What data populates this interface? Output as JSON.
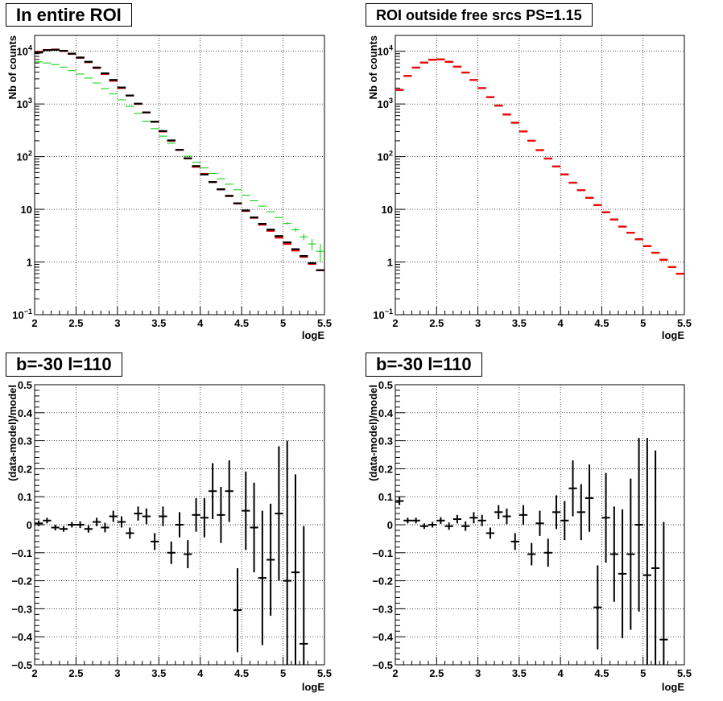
{
  "colors": {
    "data": "#000000",
    "model": "#ff0000",
    "background": "#00cc00",
    "alt_model": "#1f2ad8",
    "grid": "#000000"
  },
  "chart_data": [
    {
      "type": "scatter",
      "title": "In entire ROI",
      "xlabel": "logE",
      "ylabel": "Nb of counts",
      "xlim": [
        2,
        5.5
      ],
      "ylim": [
        0.1,
        20000
      ],
      "log_y": true,
      "grid": true,
      "xticks": [
        "2",
        "2.5",
        "3",
        "3.5",
        "4",
        "4.5",
        "5",
        "5.5"
      ],
      "yticks": [
        {
          "v": 0.1,
          "base": "10",
          "exp": "−1"
        },
        {
          "v": 1,
          "base": "1",
          "exp": ""
        },
        {
          "v": 10,
          "base": "10",
          "exp": ""
        },
        {
          "v": 100,
          "base": "10",
          "exp": "2"
        },
        {
          "v": 1000,
          "base": "10",
          "exp": "3"
        },
        {
          "v": 10000,
          "base": "10",
          "exp": "4"
        }
      ],
      "bin_width": 0.1,
      "x": [
        2.0,
        2.1,
        2.2,
        2.3,
        2.4,
        2.5,
        2.6,
        2.7,
        2.8,
        2.9,
        3.0,
        3.1,
        3.2,
        3.3,
        3.4,
        3.5,
        3.6,
        3.7,
        3.8,
        3.9,
        4.0,
        4.1,
        4.2,
        4.3,
        4.4,
        4.5,
        4.6,
        4.7,
        4.8,
        4.9,
        5.0,
        5.1,
        5.2,
        5.3,
        5.4
      ],
      "series": [
        {
          "color": "#00cc00",
          "width": 1,
          "values": [
            6300,
            6000,
            5600,
            5000,
            4300,
            3700,
            3100,
            2500,
            1950,
            1550,
            1200,
            900,
            660,
            470,
            340,
            245,
            180,
            135,
            102,
            78,
            61,
            48,
            38,
            30,
            23.5,
            18.5,
            14.5,
            11.5,
            9,
            7,
            5.4,
            4.1,
            3,
            2.2,
            1.6
          ],
          "errors": [
            0,
            0,
            0,
            0,
            0,
            0,
            0,
            0,
            0,
            0,
            0,
            0,
            0,
            0,
            0,
            0,
            0,
            0,
            0,
            0,
            0,
            0,
            0,
            0,
            0,
            0,
            0,
            0,
            0,
            0,
            0.25,
            0.32,
            0.42,
            0.52,
            0.6
          ]
        },
        {
          "color": "#000000",
          "width": 2.2,
          "values": [
            9500,
            10500,
            10700,
            10200,
            9000,
            7600,
            6300,
            4900,
            3800,
            2850,
            2050,
            1450,
            1010,
            690,
            460,
            305,
            203,
            135,
            93,
            66,
            46,
            33,
            24,
            18,
            13,
            9.5,
            7,
            5.3,
            4.1,
            3.1,
            2.35,
            1.75,
            1.3,
            0.95,
            0.7
          ],
          "errors": [
            0,
            0,
            0,
            0,
            0,
            0,
            0,
            0,
            0,
            0,
            0,
            0,
            0,
            0,
            0,
            0,
            0,
            0,
            0,
            0,
            0,
            0,
            0,
            0,
            0,
            0,
            0,
            0,
            0,
            0,
            0,
            0,
            0,
            0,
            0
          ]
        },
        {
          "color": "#ff0000",
          "width": 2.2,
          "values": [
            9700,
            10600,
            10800,
            10100,
            8900,
            7500,
            6200,
            4800,
            3700,
            2750,
            2000,
            1450,
            1000,
            690,
            460,
            300,
            200,
            135,
            93,
            64,
            47,
            33,
            24,
            17.8,
            13,
            9.3,
            6.9,
            5.1,
            3.9,
            2.9,
            2.2,
            1.65,
            1.25,
            0.92,
            0.7
          ],
          "errors": [
            0,
            0,
            0,
            0,
            0,
            0,
            0,
            0,
            0,
            0,
            0,
            0,
            0,
            0,
            0,
            0,
            0,
            0,
            0,
            0,
            0,
            0,
            0,
            0,
            0,
            0,
            0,
            0,
            0,
            0,
            0,
            0,
            0,
            0,
            0
          ]
        },
        {
          "color": "#000000",
          "width": 2.2,
          "values": [
            9500,
            10500,
            10700,
            10200,
            9000,
            7600,
            6300,
            4900,
            3800,
            2850,
            2050,
            1450,
            1010,
            690,
            460,
            305,
            203,
            135,
            93,
            66,
            46,
            33,
            24,
            18,
            13,
            9.5,
            7,
            5.3,
            4.1,
            3.1,
            2.35,
            1.75,
            1.3,
            0.95,
            0.7
          ],
          "errors": [
            0,
            0,
            0,
            0,
            0,
            0,
            0,
            0,
            0,
            0,
            0,
            0,
            0,
            0,
            0,
            0,
            0,
            0,
            0,
            0,
            0,
            0,
            0,
            0,
            0,
            0,
            0,
            0,
            0,
            0,
            0,
            0,
            0,
            0,
            0
          ]
        }
      ]
    },
    {
      "type": "scatter",
      "title": "ROI outside free srcs PS=1.15",
      "xlabel": "logE",
      "ylabel": "Nb of counts",
      "xlim": [
        2,
        5.5
      ],
      "ylim": [
        0.1,
        20000
      ],
      "log_y": true,
      "grid": true,
      "xticks": [
        "2",
        "2.5",
        "3",
        "3.5",
        "4",
        "4.5",
        "5",
        "5.5"
      ],
      "yticks": [
        {
          "v": 0.1,
          "base": "10",
          "exp": "−1"
        },
        {
          "v": 1,
          "base": "1",
          "exp": ""
        },
        {
          "v": 10,
          "base": "10",
          "exp": ""
        },
        {
          "v": 100,
          "base": "10",
          "exp": "2"
        },
        {
          "v": 1000,
          "base": "10",
          "exp": "3"
        },
        {
          "v": 10000,
          "base": "10",
          "exp": "4"
        }
      ],
      "bin_width": 0.1,
      "x": [
        2.0,
        2.1,
        2.2,
        2.3,
        2.4,
        2.5,
        2.6,
        2.7,
        2.8,
        2.9,
        3.0,
        3.1,
        3.2,
        3.3,
        3.4,
        3.5,
        3.6,
        3.7,
        3.8,
        3.9,
        4.0,
        4.1,
        4.2,
        4.3,
        4.4,
        4.5,
        4.6,
        4.7,
        4.8,
        4.9,
        5.0,
        5.1,
        5.2,
        5.3,
        5.4
      ],
      "series": [
        {
          "color": "#000000",
          "width": 2.2,
          "values": [
            1850,
            3400,
            4900,
            6100,
            6900,
            7000,
            6300,
            5100,
            3950,
            2850,
            2000,
            1350,
            930,
            630,
            440,
            300,
            200,
            133,
            92,
            65,
            46,
            32,
            23,
            16.5,
            12,
            8.8,
            6.4,
            4.7,
            3.6,
            2.7,
            2,
            1.5,
            1.1,
            0.8,
            0.6
          ],
          "errors": [
            0,
            0,
            0,
            0,
            0,
            0,
            0,
            0,
            0,
            0,
            0,
            0,
            0,
            0,
            0,
            0,
            0,
            0,
            0,
            0,
            0,
            0,
            0,
            0,
            0,
            0,
            0,
            0,
            0,
            0,
            0,
            0,
            0,
            0,
            0
          ]
        },
        {
          "color": "#ff0000",
          "width": 2.2,
          "values": [
            1850,
            3400,
            4900,
            6100,
            6900,
            7000,
            6300,
            5100,
            3950,
            2850,
            2000,
            1350,
            930,
            630,
            440,
            300,
            200,
            133,
            92,
            65,
            46,
            32,
            23,
            16.5,
            12,
            8.8,
            6.4,
            4.7,
            3.6,
            2.7,
            2,
            1.5,
            1.1,
            0.8,
            0.6
          ],
          "errors": [
            0,
            0,
            0,
            0,
            0,
            0,
            0,
            0,
            0,
            0,
            0,
            0,
            0,
            0,
            0,
            0,
            0,
            0,
            0,
            0,
            0,
            0,
            0,
            0,
            0,
            0,
            0,
            0,
            0,
            0,
            0,
            0,
            0,
            0,
            0
          ]
        }
      ]
    },
    {
      "type": "scatter",
      "title": "b=-30 l=110",
      "xlabel": "logE",
      "ylabel": "(data-model)/model",
      "xlim": [
        2,
        5.5
      ],
      "ylim": [
        -0.5,
        0.5
      ],
      "log_y": false,
      "grid": true,
      "xticks": [
        "2",
        "2.5",
        "3",
        "3.5",
        "4",
        "4.5",
        "5",
        "5.5"
      ],
      "yticks": [
        "−0.5",
        "−0.4",
        "−0.3",
        "−0.2",
        "−0.1",
        "0",
        "0.1",
        "0.2",
        "0.3",
        "0.4",
        "0.5"
      ],
      "bin_width": 0.1,
      "x": [
        2.0,
        2.1,
        2.2,
        2.3,
        2.4,
        2.5,
        2.6,
        2.7,
        2.8,
        2.9,
        3.0,
        3.1,
        3.2,
        3.3,
        3.4,
        3.5,
        3.6,
        3.7,
        3.8,
        3.9,
        4.0,
        4.1,
        4.2,
        4.3,
        4.4,
        4.5,
        4.6,
        4.7,
        4.8,
        4.9,
        5.0,
        5.1,
        5.2
      ],
      "series": [
        {
          "color": "#000000",
          "width": 2,
          "values": [
            0.005,
            0.015,
            -0.01,
            -0.015,
            0.0,
            0.0,
            -0.015,
            0.01,
            -0.01,
            0.03,
            0.01,
            -0.03,
            0.04,
            0.03,
            -0.06,
            0.03,
            -0.1,
            0.0,
            -0.105,
            0.035,
            0.025,
            0.12,
            0.035,
            0.12,
            -0.305,
            0.05,
            -0.01,
            -0.19,
            -0.125,
            0.04,
            -0.2,
            -0.17,
            -0.425
          ],
          "errors": [
            0.01,
            0.01,
            0.01,
            0.01,
            0.01,
            0.012,
            0.013,
            0.015,
            0.017,
            0.02,
            0.02,
            0.02,
            0.025,
            0.028,
            0.03,
            0.035,
            0.04,
            0.045,
            0.05,
            0.06,
            0.07,
            0.1,
            0.1,
            0.11,
            0.15,
            0.14,
            0.16,
            0.24,
            0.2,
            0.24,
            0.5,
            0.35,
            0.42
          ]
        }
      ]
    },
    {
      "type": "scatter",
      "title": "b=-30 l=110",
      "xlabel": "logE",
      "ylabel": "(data-model)/model",
      "xlim": [
        2,
        5.5
      ],
      "ylim": [
        -0.5,
        0.5
      ],
      "log_y": false,
      "grid": true,
      "xticks": [
        "2",
        "2.5",
        "3",
        "3.5",
        "4",
        "4.5",
        "5",
        "5.5"
      ],
      "yticks": [
        "−0.5",
        "−0.4",
        "−0.3",
        "−0.2",
        "−0.1",
        "0",
        "0.1",
        "0.2",
        "0.3",
        "0.4",
        "0.5"
      ],
      "bin_width": 0.1,
      "x": [
        2.0,
        2.1,
        2.2,
        2.3,
        2.4,
        2.5,
        2.6,
        2.7,
        2.8,
        2.9,
        3.0,
        3.1,
        3.2,
        3.3,
        3.4,
        3.5,
        3.6,
        3.7,
        3.8,
        3.9,
        4.0,
        4.1,
        4.2,
        4.3,
        4.4,
        4.5,
        4.6,
        4.7,
        4.8,
        4.9,
        5.0,
        5.1,
        5.2
      ],
      "series": [
        {
          "color": "#000000",
          "width": 2,
          "values": [
            0.085,
            0.015,
            0.015,
            -0.005,
            0.0,
            0.015,
            -0.005,
            0.02,
            -0.005,
            0.025,
            0.015,
            -0.03,
            0.045,
            0.03,
            -0.06,
            0.035,
            -0.105,
            0.005,
            -0.1,
            0.045,
            0.015,
            0.13,
            0.045,
            0.095,
            -0.295,
            0.025,
            -0.105,
            -0.175,
            -0.105,
            0.0,
            -0.18,
            -0.155,
            -0.41
          ],
          "errors": [
            0.015,
            0.01,
            0.01,
            0.01,
            0.01,
            0.012,
            0.013,
            0.015,
            0.017,
            0.02,
            0.02,
            0.02,
            0.025,
            0.028,
            0.03,
            0.035,
            0.04,
            0.045,
            0.05,
            0.06,
            0.07,
            0.1,
            0.1,
            0.12,
            0.15,
            0.16,
            0.17,
            0.23,
            0.27,
            0.31,
            0.49,
            0.42,
            0.42
          ]
        }
      ]
    }
  ]
}
